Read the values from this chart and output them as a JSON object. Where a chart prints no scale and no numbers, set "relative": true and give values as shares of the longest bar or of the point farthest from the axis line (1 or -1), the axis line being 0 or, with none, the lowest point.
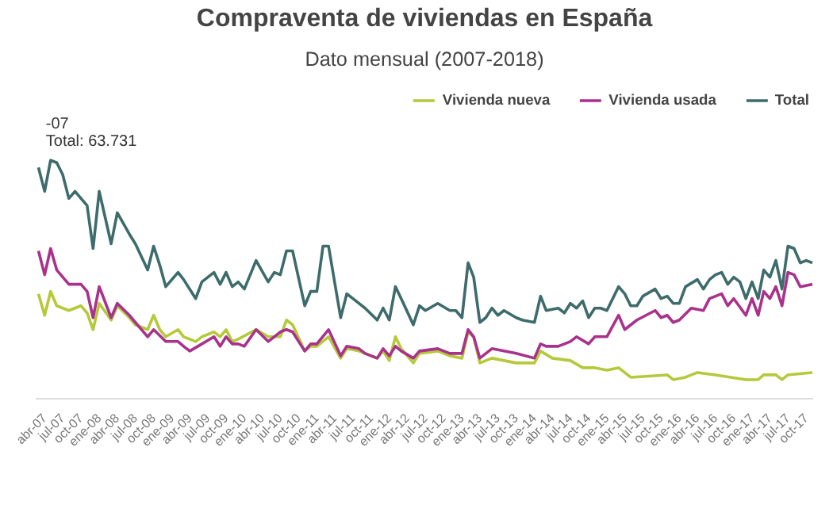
{
  "chart_data": {
    "type": "line",
    "title": "Compraventa de viviendas en España",
    "subtitle": "Dato mensual (2007-2018)",
    "relative": true,
    "legend": "top right",
    "grid": false,
    "marker": "none",
    "line_style": "solid",
    "xlim": [
      "2007-02-15",
      "2017-11-05"
    ],
    "xticks": [
      {
        "value": "2007-04",
        "label": "abr-07"
      },
      {
        "value": "2007-07",
        "label": "jul-07"
      },
      {
        "value": "2007-10",
        "label": "oct-07"
      },
      {
        "value": "2008-01",
        "label": "ene-08"
      },
      {
        "value": "2008-04",
        "label": "abr-08"
      },
      {
        "value": "2008-07",
        "label": "jul-08"
      },
      {
        "value": "2008-10",
        "label": "oct-08"
      },
      {
        "value": "2009-01",
        "label": "ene-09"
      },
      {
        "value": "2009-04",
        "label": "abr-09"
      },
      {
        "value": "2009-07",
        "label": "jul-09"
      },
      {
        "value": "2009-10",
        "label": "oct-09"
      },
      {
        "value": "2010-01",
        "label": "ene-10"
      },
      {
        "value": "2010-04",
        "label": "abr-10"
      },
      {
        "value": "2010-07",
        "label": "jul-10"
      },
      {
        "value": "2010-10",
        "label": "oct-10"
      },
      {
        "value": "2011-01",
        "label": "ene-11"
      },
      {
        "value": "2011-04",
        "label": "abr-11"
      },
      {
        "value": "2011-07",
        "label": "jul-11"
      },
      {
        "value": "2011-10",
        "label": "oct-11"
      },
      {
        "value": "2012-01",
        "label": "ene-12"
      },
      {
        "value": "2012-04",
        "label": "abr-12"
      },
      {
        "value": "2012-07",
        "label": "jul-12"
      },
      {
        "value": "2012-10",
        "label": "oct-12"
      },
      {
        "value": "2013-01",
        "label": "ene-13"
      },
      {
        "value": "2013-04",
        "label": "abr-13"
      },
      {
        "value": "2013-07",
        "label": "jul-13"
      },
      {
        "value": "2013-10",
        "label": "oct-13"
      },
      {
        "value": "2014-01",
        "label": "ene-14"
      },
      {
        "value": "2014-04",
        "label": "abr-14"
      },
      {
        "value": "2014-07",
        "label": "jul-14"
      },
      {
        "value": "2014-10",
        "label": "oct-14"
      },
      {
        "value": "2015-01",
        "label": "ene-15"
      },
      {
        "value": "2015-04",
        "label": "abr-15"
      },
      {
        "value": "2015-07",
        "label": "jul-15"
      },
      {
        "value": "2015-10",
        "label": "oct-15"
      },
      {
        "value": "2016-01",
        "label": "ene-16"
      },
      {
        "value": "2016-04",
        "label": "abr-16"
      },
      {
        "value": "2016-07",
        "label": "jul-16"
      },
      {
        "value": "2016-10",
        "label": "oct-16"
      },
      {
        "value": "2017-01",
        "label": "ene-17"
      },
      {
        "value": "2017-04",
        "label": "abr-17"
      },
      {
        "value": "2017-07",
        "label": "jul-17"
      },
      {
        "value": "2017-10",
        "label": "oct-17"
      }
    ],
    "annotations": [
      {
        "text": "-07",
        "x": "2007-05",
        "y": 1.0
      },
      {
        "text": "Total: 63.731",
        "x": "2007-05",
        "y": 1.0
      }
    ],
    "series": [
      {
        "name": "Vivienda nueva",
        "color": "#b5c93a",
        "x": [
          "2007-03",
          "2007-04",
          "2007-05",
          "2007-06",
          "2007-08",
          "2007-10",
          "2007-11",
          "2007-12",
          "2008-01",
          "2008-03",
          "2008-04",
          "2008-06",
          "2008-07",
          "2008-09",
          "2008-10",
          "2008-11",
          "2008-12",
          "2009-02",
          "2009-03",
          "2009-05",
          "2009-06",
          "2009-08",
          "2009-09",
          "2009-10",
          "2009-11",
          "2009-12",
          "2010-03",
          "2010-05",
          "2010-07",
          "2010-08",
          "2010-09",
          "2010-11",
          "2010-12",
          "2011-01",
          "2011-03",
          "2011-05",
          "2011-06",
          "2011-08",
          "2011-09",
          "2011-11",
          "2011-12",
          "2012-01",
          "2012-02",
          "2012-03",
          "2012-05",
          "2012-06",
          "2012-09",
          "2012-11",
          "2013-01",
          "2013-02",
          "2013-03",
          "2013-04",
          "2013-06",
          "2013-08",
          "2013-10",
          "2014-01",
          "2014-02",
          "2014-04",
          "2014-07",
          "2014-09",
          "2014-11",
          "2015-01",
          "2015-03",
          "2015-05",
          "2015-11",
          "2015-12",
          "2016-02",
          "2016-04",
          "2016-07",
          "2016-12",
          "2017-02",
          "2017-03",
          "2017-05",
          "2017-06",
          "2017-07",
          "2017-11"
        ],
        "values": [
          0.44,
          0.35,
          0.45,
          0.39,
          0.37,
          0.39,
          0.36,
          0.29,
          0.4,
          0.33,
          0.39,
          0.34,
          0.31,
          0.29,
          0.35,
          0.29,
          0.26,
          0.29,
          0.26,
          0.24,
          0.26,
          0.28,
          0.26,
          0.29,
          0.24,
          0.25,
          0.29,
          0.26,
          0.26,
          0.33,
          0.31,
          0.2,
          0.22,
          0.22,
          0.26,
          0.17,
          0.21,
          0.2,
          0.19,
          0.17,
          0.2,
          0.16,
          0.26,
          0.21,
          0.15,
          0.19,
          0.2,
          0.18,
          0.17,
          0.28,
          0.26,
          0.15,
          0.17,
          0.16,
          0.15,
          0.15,
          0.2,
          0.17,
          0.16,
          0.13,
          0.13,
          0.12,
          0.13,
          0.09,
          0.1,
          0.08,
          0.09,
          0.11,
          0.1,
          0.08,
          0.08,
          0.1,
          0.1,
          0.08,
          0.1,
          0.11
        ]
      },
      {
        "name": "Vivienda usada",
        "color": "#a8328c",
        "x": [
          "2007-03",
          "2007-04",
          "2007-05",
          "2007-06",
          "2007-08",
          "2007-10",
          "2007-11",
          "2007-12",
          "2008-01",
          "2008-03",
          "2008-04",
          "2008-06",
          "2008-07",
          "2008-09",
          "2008-10",
          "2008-12",
          "2009-02",
          "2009-03",
          "2009-04",
          "2009-06",
          "2009-08",
          "2009-09",
          "2009-10",
          "2009-11",
          "2009-12",
          "2010-01",
          "2010-03",
          "2010-05",
          "2010-07",
          "2010-08",
          "2010-09",
          "2010-11",
          "2010-12",
          "2011-01",
          "2011-03",
          "2011-05",
          "2011-06",
          "2011-08",
          "2011-09",
          "2011-11",
          "2011-12",
          "2012-01",
          "2012-02",
          "2012-03",
          "2012-05",
          "2012-06",
          "2012-09",
          "2012-11",
          "2013-01",
          "2013-02",
          "2013-03",
          "2013-04",
          "2013-06",
          "2013-08",
          "2013-10",
          "2014-01",
          "2014-02",
          "2014-03",
          "2014-05",
          "2014-07",
          "2014-08",
          "2014-10",
          "2014-11",
          "2015-01",
          "2015-03",
          "2015-04",
          "2015-06",
          "2015-09",
          "2015-10",
          "2015-11",
          "2015-12",
          "2016-01",
          "2016-03",
          "2016-05",
          "2016-06",
          "2016-08",
          "2016-09",
          "2016-10",
          "2016-12",
          "2017-01",
          "2017-02",
          "2017-03",
          "2017-04",
          "2017-05",
          "2017-06",
          "2017-07",
          "2017-08",
          "2017-09",
          "2017-11"
        ],
        "values": [
          0.62,
          0.52,
          0.63,
          0.54,
          0.48,
          0.48,
          0.45,
          0.34,
          0.47,
          0.34,
          0.4,
          0.35,
          0.32,
          0.26,
          0.29,
          0.24,
          0.24,
          0.22,
          0.2,
          0.23,
          0.26,
          0.22,
          0.26,
          0.23,
          0.23,
          0.22,
          0.29,
          0.24,
          0.28,
          0.29,
          0.28,
          0.2,
          0.23,
          0.23,
          0.29,
          0.18,
          0.22,
          0.21,
          0.19,
          0.17,
          0.21,
          0.18,
          0.22,
          0.2,
          0.17,
          0.2,
          0.21,
          0.19,
          0.19,
          0.29,
          0.26,
          0.17,
          0.21,
          0.2,
          0.19,
          0.17,
          0.23,
          0.22,
          0.22,
          0.24,
          0.26,
          0.23,
          0.26,
          0.26,
          0.35,
          0.29,
          0.33,
          0.37,
          0.34,
          0.35,
          0.32,
          0.33,
          0.38,
          0.37,
          0.42,
          0.44,
          0.39,
          0.42,
          0.35,
          0.42,
          0.35,
          0.45,
          0.42,
          0.47,
          0.39,
          0.53,
          0.52,
          0.47,
          0.48
        ]
      },
      {
        "name": "Total",
        "color": "#3e6b6b",
        "x": [
          "2007-03",
          "2007-04",
          "2007-05",
          "2007-06",
          "2007-07",
          "2007-08",
          "2007-09",
          "2007-11",
          "2007-12",
          "2008-01",
          "2008-03",
          "2008-04",
          "2008-06",
          "2008-07",
          "2008-09",
          "2008-10",
          "2008-11",
          "2008-12",
          "2009-02",
          "2009-03",
          "2009-05",
          "2009-06",
          "2009-08",
          "2009-09",
          "2009-10",
          "2009-11",
          "2009-12",
          "2010-01",
          "2010-03",
          "2010-05",
          "2010-06",
          "2010-07",
          "2010-08",
          "2010-09",
          "2010-11",
          "2010-12",
          "2011-01",
          "2011-02",
          "2011-03",
          "2011-05",
          "2011-06",
          "2011-08",
          "2011-09",
          "2011-11",
          "2011-12",
          "2012-01",
          "2012-02",
          "2012-03",
          "2012-05",
          "2012-06",
          "2012-07",
          "2012-09",
          "2012-11",
          "2012-12",
          "2013-01",
          "2013-02",
          "2013-03",
          "2013-04",
          "2013-05",
          "2013-06",
          "2013-07",
          "2013-08",
          "2013-10",
          "2013-11",
          "2014-01",
          "2014-02",
          "2014-03",
          "2014-05",
          "2014-06",
          "2014-07",
          "2014-08",
          "2014-09",
          "2014-10",
          "2014-11",
          "2014-12",
          "2015-01",
          "2015-03",
          "2015-04",
          "2015-05",
          "2015-06",
          "2015-07",
          "2015-09",
          "2015-10",
          "2015-11",
          "2015-12",
          "2016-01",
          "2016-02",
          "2016-04",
          "2016-05",
          "2016-06",
          "2016-07",
          "2016-08",
          "2016-09",
          "2016-10",
          "2016-11",
          "2016-12",
          "2017-01",
          "2017-02",
          "2017-03",
          "2017-04",
          "2017-05",
          "2017-06",
          "2017-07",
          "2017-08",
          "2017-09",
          "2017-10",
          "2017-11"
        ],
        "values": [
          0.97,
          0.87,
          1.0,
          0.99,
          0.94,
          0.84,
          0.87,
          0.81,
          0.63,
          0.87,
          0.65,
          0.78,
          0.69,
          0.65,
          0.54,
          0.64,
          0.56,
          0.47,
          0.53,
          0.5,
          0.42,
          0.49,
          0.53,
          0.48,
          0.53,
          0.47,
          0.49,
          0.46,
          0.58,
          0.49,
          0.53,
          0.52,
          0.62,
          0.62,
          0.39,
          0.45,
          0.45,
          0.64,
          0.64,
          0.34,
          0.44,
          0.4,
          0.38,
          0.33,
          0.38,
          0.33,
          0.47,
          0.42,
          0.31,
          0.39,
          0.37,
          0.4,
          0.37,
          0.37,
          0.34,
          0.57,
          0.51,
          0.32,
          0.34,
          0.38,
          0.35,
          0.37,
          0.34,
          0.33,
          0.32,
          0.43,
          0.37,
          0.38,
          0.36,
          0.4,
          0.38,
          0.41,
          0.34,
          0.38,
          0.38,
          0.37,
          0.47,
          0.44,
          0.39,
          0.39,
          0.43,
          0.46,
          0.42,
          0.43,
          0.4,
          0.4,
          0.47,
          0.5,
          0.46,
          0.5,
          0.52,
          0.53,
          0.48,
          0.51,
          0.49,
          0.42,
          0.49,
          0.42,
          0.54,
          0.51,
          0.58,
          0.46,
          0.64,
          0.63,
          0.57,
          0.58,
          0.57
        ]
      }
    ]
  }
}
